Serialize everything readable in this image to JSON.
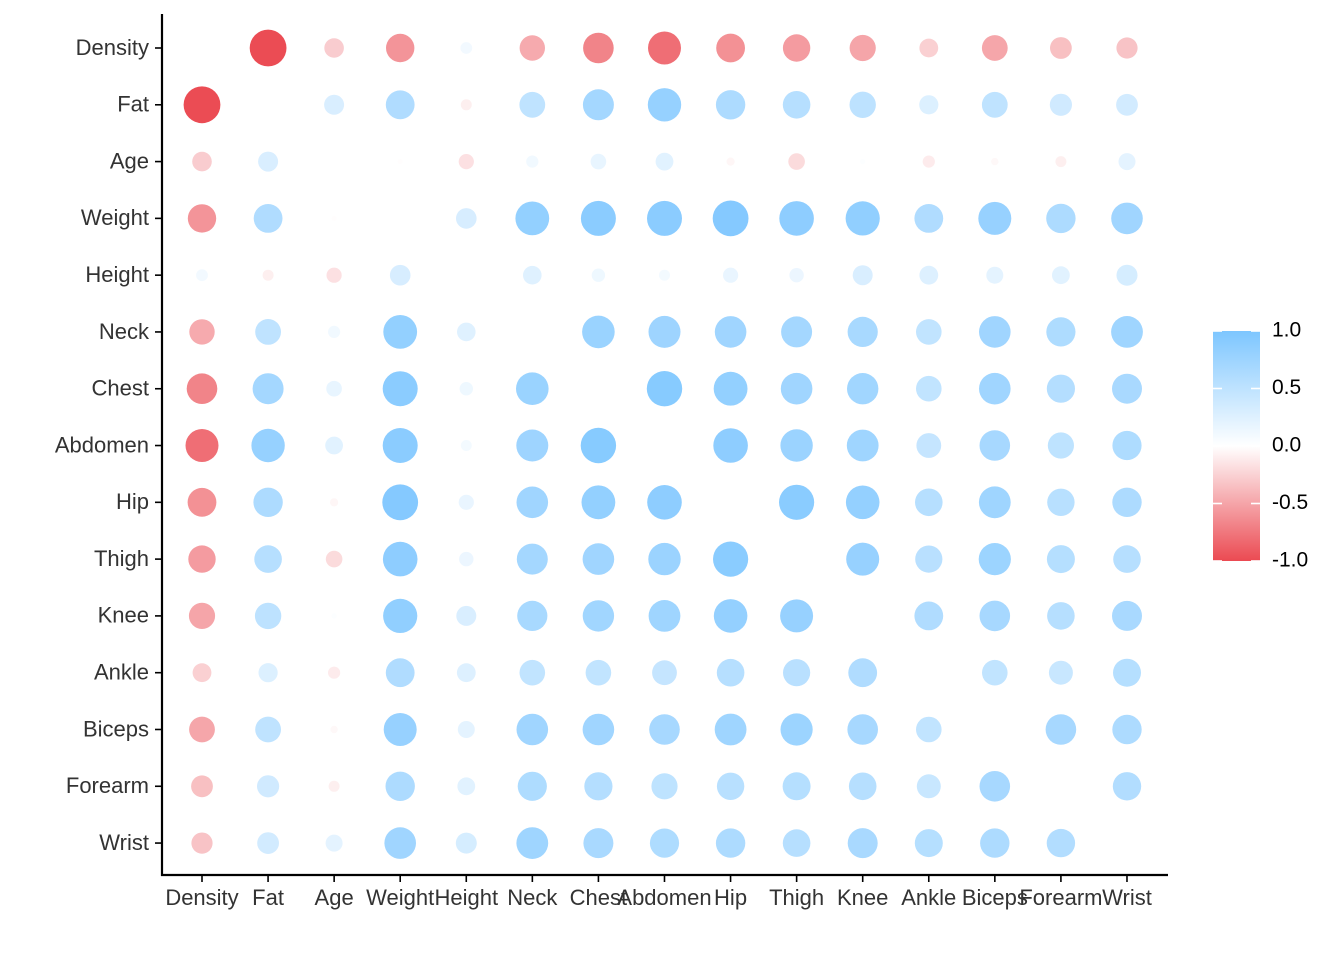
{
  "chart_data": {
    "type": "correlation-bubble-heatmap",
    "variables": [
      "Density",
      "Fat",
      "Age",
      "Weight",
      "Height",
      "Neck",
      "Chest",
      "Abdomen",
      "Hip",
      "Thigh",
      "Knee",
      "Ankle",
      "Biceps",
      "Forearm",
      "Wrist"
    ],
    "values": [
      [
        null,
        -0.99,
        -0.28,
        -0.59,
        0.1,
        -0.47,
        -0.68,
        -0.8,
        -0.61,
        -0.55,
        -0.5,
        -0.26,
        -0.49,
        -0.35,
        -0.33
      ],
      [
        -0.99,
        null,
        0.29,
        0.61,
        -0.09,
        0.49,
        0.7,
        0.81,
        0.63,
        0.56,
        0.51,
        0.27,
        0.49,
        0.36,
        0.35
      ],
      [
        -0.28,
        0.29,
        null,
        -0.01,
        -0.17,
        0.11,
        0.18,
        0.23,
        -0.05,
        -0.2,
        0.02,
        -0.11,
        -0.04,
        -0.09,
        0.21
      ],
      [
        -0.59,
        0.61,
        -0.01,
        null,
        0.31,
        0.83,
        0.89,
        0.89,
        0.94,
        0.87,
        0.85,
        0.61,
        0.8,
        0.63,
        0.73
      ],
      [
        0.1,
        -0.09,
        -0.17,
        0.31,
        null,
        0.25,
        0.13,
        0.09,
        0.17,
        0.15,
        0.29,
        0.26,
        0.21,
        0.23,
        0.32
      ],
      [
        -0.47,
        0.49,
        0.11,
        0.83,
        0.25,
        null,
        0.78,
        0.75,
        0.73,
        0.7,
        0.67,
        0.48,
        0.73,
        0.62,
        0.74
      ],
      [
        -0.68,
        0.7,
        0.18,
        0.89,
        0.13,
        0.78,
        null,
        0.92,
        0.83,
        0.73,
        0.72,
        0.48,
        0.73,
        0.58,
        0.66
      ],
      [
        -0.8,
        0.81,
        0.23,
        0.89,
        0.09,
        0.75,
        0.92,
        null,
        0.87,
        0.77,
        0.74,
        0.45,
        0.68,
        0.5,
        0.62
      ],
      [
        -0.61,
        0.63,
        -0.05,
        0.94,
        0.17,
        0.73,
        0.83,
        0.87,
        null,
        0.9,
        0.82,
        0.56,
        0.74,
        0.55,
        0.63
      ],
      [
        -0.55,
        0.56,
        -0.2,
        0.87,
        0.15,
        0.7,
        0.73,
        0.77,
        0.9,
        null,
        0.8,
        0.54,
        0.76,
        0.57,
        0.56
      ],
      [
        -0.5,
        0.51,
        0.02,
        0.85,
        0.29,
        0.67,
        0.72,
        0.74,
        0.82,
        0.8,
        null,
        0.61,
        0.68,
        0.56,
        0.66
      ],
      [
        -0.26,
        0.27,
        -0.11,
        0.61,
        0.26,
        0.48,
        0.48,
        0.45,
        0.56,
        0.54,
        0.61,
        null,
        0.48,
        0.42,
        0.57
      ],
      [
        -0.49,
        0.49,
        -0.04,
        0.8,
        0.21,
        0.73,
        0.73,
        0.68,
        0.74,
        0.76,
        0.68,
        0.48,
        null,
        0.68,
        0.63
      ],
      [
        -0.35,
        0.36,
        -0.09,
        0.63,
        0.23,
        0.62,
        0.58,
        0.5,
        0.55,
        0.57,
        0.56,
        0.42,
        0.68,
        null,
        0.59
      ],
      [
        -0.33,
        0.35,
        0.21,
        0.73,
        0.32,
        0.74,
        0.66,
        0.62,
        0.63,
        0.56,
        0.66,
        0.57,
        0.63,
        0.59,
        null
      ]
    ],
    "legend": {
      "ticks": [
        1.0,
        0.5,
        0.0,
        -0.5,
        -1.0
      ],
      "tick_labels": [
        "1.0",
        "0.5",
        "0.0",
        "-0.5",
        "-1.0"
      ],
      "position": "right"
    },
    "colors": {
      "positive": "#7DC6FF",
      "zero": "#FFFFFF",
      "negative": "#EB4A52"
    },
    "xlim": [
      -1,
      1
    ],
    "grid": false
  }
}
